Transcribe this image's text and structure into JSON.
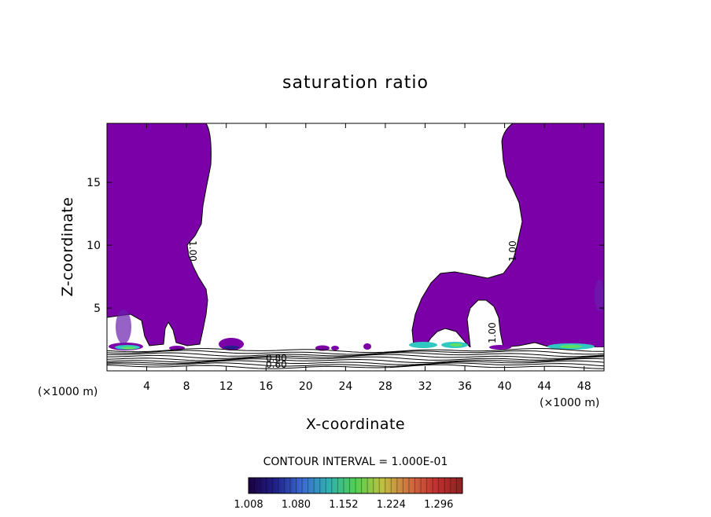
{
  "chart_data": {
    "type": "heatmap",
    "title": "saturation ratio",
    "xlabel": "X-coordinate",
    "ylabel": "Z-coordinate",
    "x_unit": "(×1000 m)",
    "y_unit": "(×1000 m)",
    "xlim": [
      0,
      50
    ],
    "ylim": [
      0,
      19.7
    ],
    "x_ticks": [
      4,
      8,
      12,
      16,
      20,
      24,
      28,
      32,
      36,
      40,
      44,
      48
    ],
    "y_ticks": [
      5,
      10,
      15
    ],
    "contour_interval_text": "CONTOUR INTERVAL = 1.000E-01",
    "colorbar": {
      "labels": [
        "1.008",
        "1.080",
        "1.152",
        "1.224",
        "1.296"
      ],
      "range": [
        1.008,
        1.332
      ],
      "colors": [
        "#1a0040",
        "#20208a",
        "#3a6ad0",
        "#30b0b0",
        "#50d050",
        "#c0c040",
        "#d07040",
        "#c03030",
        "#902020"
      ]
    },
    "contour_labels": [
      "1.00",
      "1.00",
      "1.00",
      "0.80",
      "0.60"
    ],
    "contour_levels": [
      0.6,
      0.7,
      0.8,
      0.9,
      1.0
    ],
    "colors": {
      "supersaturated_fill": "#7b00a8",
      "surface_high": "#30c8c0",
      "surface_peak": "#60e060"
    }
  }
}
